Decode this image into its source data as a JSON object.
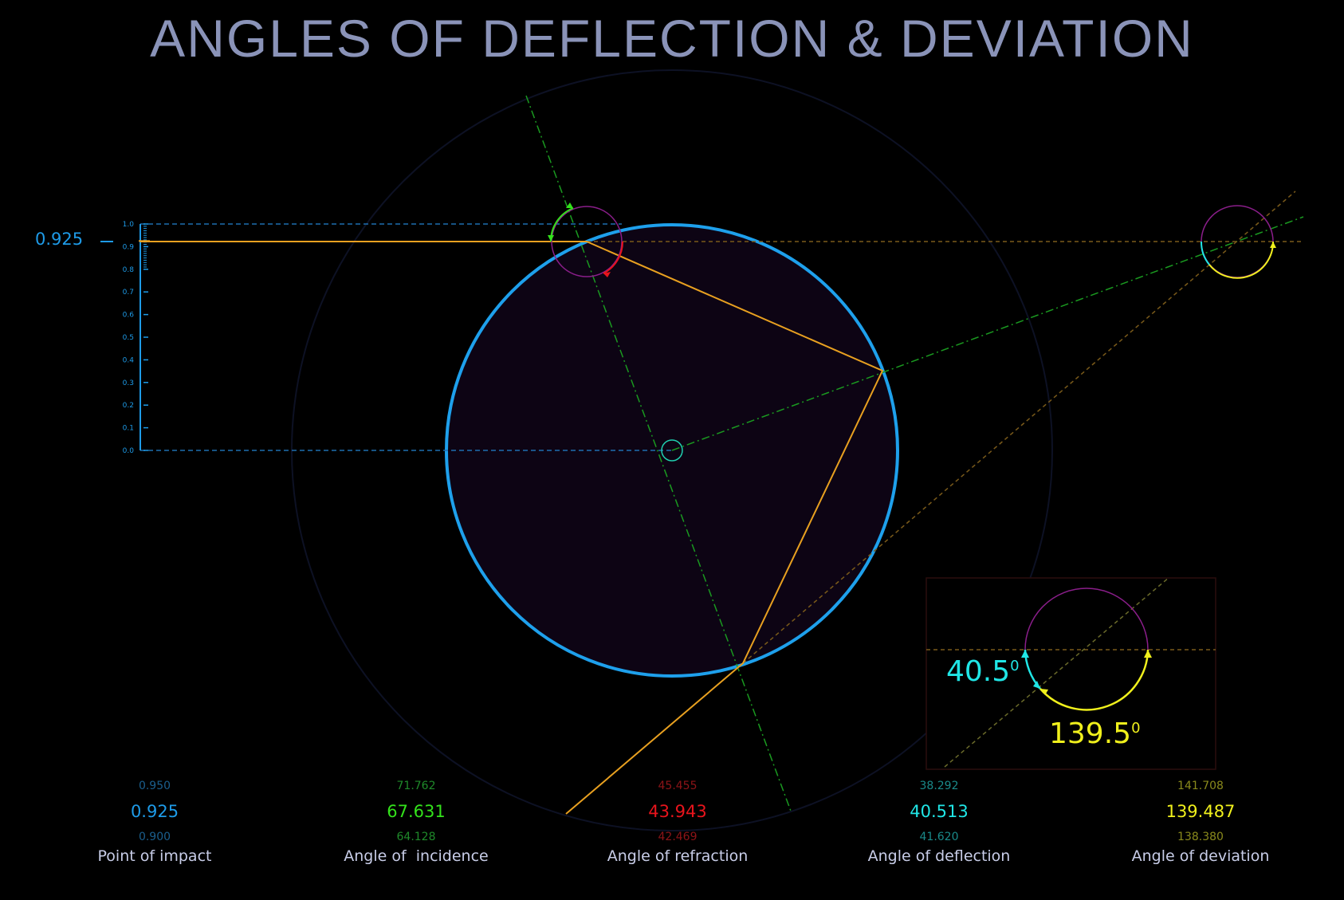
{
  "title": "ANGLES OF DEFLECTION & DEVIATION",
  "slider": {
    "value_label": "0.925",
    "value": 0.925,
    "ticks": [
      "1.0",
      "0.9",
      "0.8",
      "0.7",
      "0.6",
      "0.5",
      "0.4",
      "0.3",
      "0.2",
      "0.1",
      "0.0"
    ]
  },
  "inset": {
    "deflection_label": "40.5",
    "deviation_label": "139.5",
    "degree_sup": "0"
  },
  "metrics": [
    {
      "key": "impact",
      "upper": "0.950",
      "value": "0.925",
      "lower": "0.900",
      "label": "Point of impact"
    },
    {
      "key": "incidence",
      "upper": "71.762",
      "value": "67.631",
      "lower": "64.128",
      "label": "Angle of  incidence"
    },
    {
      "key": "refraction",
      "upper": "45.455",
      "value": "43.943",
      "lower": "42.469",
      "label": "Angle of refraction"
    },
    {
      "key": "deflection",
      "upper": "38.292",
      "value": "40.513",
      "lower": "41.620",
      "label": "Angle of deflection"
    },
    {
      "key": "deviation",
      "upper": "141.708",
      "value": "139.487",
      "lower": "138.380",
      "label": "Angle of deviation"
    }
  ],
  "colors": {
    "droplet_stroke": "#1ea0ec",
    "droplet_fill": "#0d0414",
    "ray": "#e8a020",
    "normal": "#1a9a20",
    "incidence": "#33e21b",
    "refraction": "#e8141c",
    "deflection": "#20e6e6",
    "deviation": "#f0f01c",
    "protractor": "#8a1e8a"
  }
}
